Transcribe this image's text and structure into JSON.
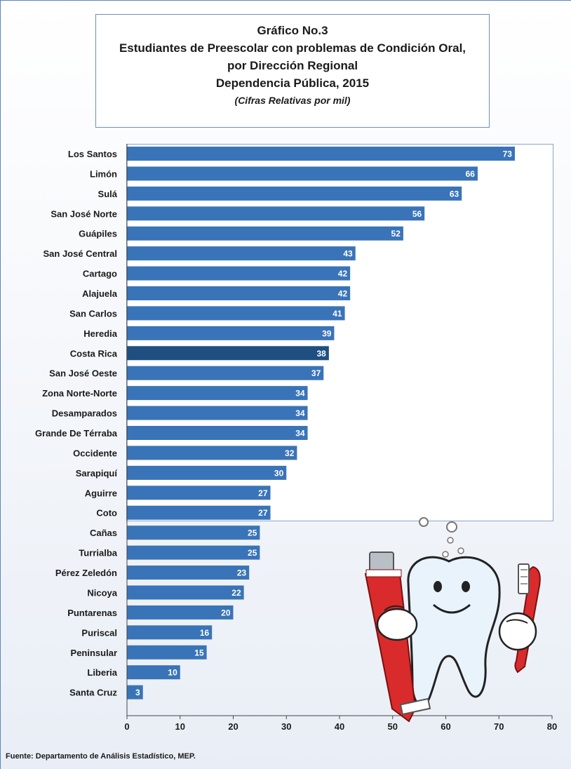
{
  "title": {
    "line1": "Gráfico No.3",
    "line2": "Estudiantes de Preescolar con problemas de Condición Oral,",
    "line3": "por Dirección Regional",
    "line4": "Dependencia Pública, 2015",
    "subtitle": "(Cifras Relativas por mil)"
  },
  "source": "Fuente: Departamento de Análisis Estadístico, MEP.",
  "colors": {
    "bar": "#3a74b8",
    "bar_highlight": "#1e4f80",
    "label_text": "#ffffff"
  },
  "illustration": "cartoon-tooth-with-toothpaste-and-toothbrush",
  "chart_data": {
    "type": "bar",
    "orientation": "horizontal",
    "categories": [
      "Los Santos",
      "Limón",
      "Sulá",
      "San José Norte",
      "Guápiles",
      "San José Central",
      "Cartago",
      "Alajuela",
      "San Carlos",
      "Heredia",
      "Costa Rica",
      "San José Oeste",
      "Zona Norte-Norte",
      "Desamparados",
      "Grande De Térraba",
      "Occidente",
      "Sarapiquí",
      "Aguirre",
      "Coto",
      "Cañas",
      "Turrialba",
      "Pérez Zeledón",
      "Nicoya",
      "Puntarenas",
      "Puriscal",
      "Peninsular",
      "Liberia",
      "Santa Cruz"
    ],
    "values": [
      73,
      66,
      63,
      56,
      52,
      43,
      42,
      42,
      41,
      39,
      38,
      37,
      34,
      34,
      34,
      32,
      30,
      27,
      27,
      25,
      25,
      23,
      22,
      20,
      16,
      15,
      10,
      3
    ],
    "highlight": "Costa Rica",
    "xlim": [
      0,
      80
    ],
    "xticks": [
      0,
      10,
      20,
      30,
      40,
      50,
      60,
      70,
      80
    ],
    "grid": false,
    "legend": "none"
  }
}
